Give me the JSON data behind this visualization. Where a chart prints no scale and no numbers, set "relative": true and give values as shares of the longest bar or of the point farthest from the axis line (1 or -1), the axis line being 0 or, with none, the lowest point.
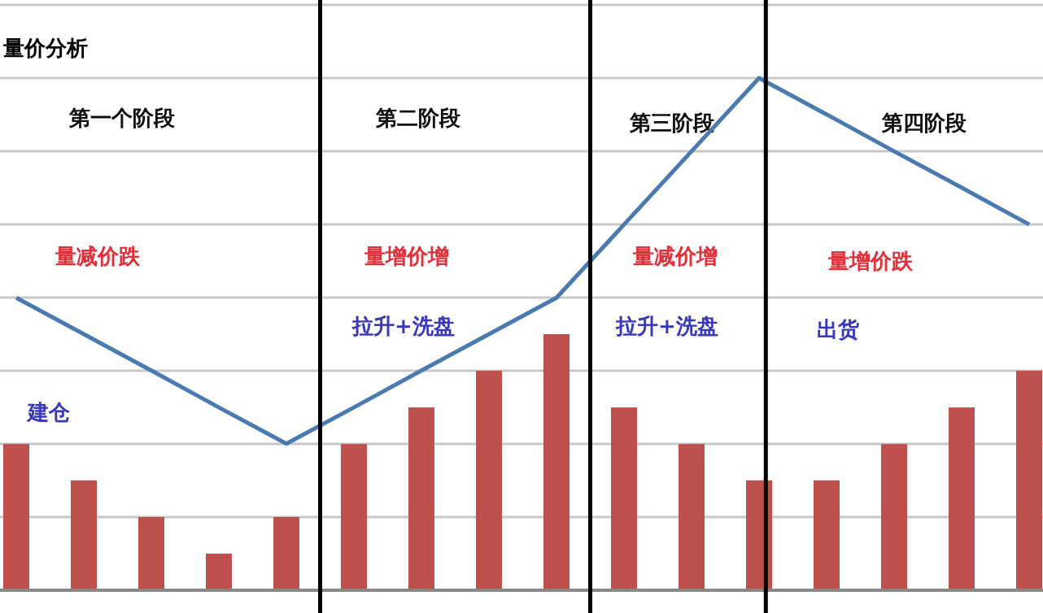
{
  "chart_data": [
    {
      "type": "bar",
      "title": "量价分析",
      "relative": true,
      "grid": "y",
      "categories": [
        null,
        null,
        null,
        null,
        null,
        null,
        null,
        null,
        null,
        null,
        null,
        null,
        null,
        null,
        null,
        null
      ],
      "series": [
        {
          "color": "#c0504d",
          "values": [
            0.571,
            0.429,
            0.286,
            0.143,
            0.286,
            0.571,
            0.714,
            0.857,
            1,
            0.714,
            0.571,
            0.429,
            0.429,
            0.571,
            0.714,
            0.857
          ]
        }
      ],
      "annotations": [
        "第一个阶段",
        "第二阶段",
        "第三阶段",
        "第四阶段",
        "量减价跌",
        "量增价增",
        "量减价增",
        "量增价跌",
        "建仓",
        "拉升+洗盘",
        "拉升+洗盘",
        "出货"
      ]
    },
    {
      "type": "line",
      "relative": true,
      "marker": "none",
      "categories": [
        null,
        null,
        null,
        null,
        null,
        null,
        null,
        null,
        null,
        null,
        null,
        null,
        null,
        null,
        null,
        null
      ],
      "series": [
        {
          "color": "#4a7ab0",
          "values": [
            0.571,
            0.5,
            0.429,
            0.357,
            0.286,
            0.357,
            0.429,
            0.5,
            0.571,
            0.714,
            0.857,
            1,
            0.929,
            0.857,
            0.786,
            0.714
          ]
        }
      ]
    }
  ]
}
